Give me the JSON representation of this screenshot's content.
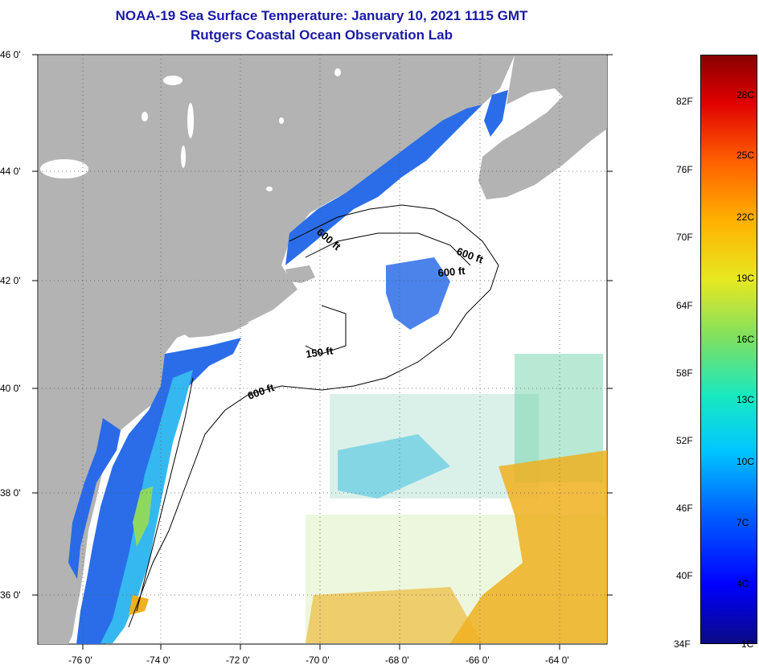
{
  "title": {
    "line1": "NOAA-19 Sea Surface Temperature:  January 10, 2021 1115 GMT",
    "line2": "Rutgers Coastal Ocean Observation Lab"
  },
  "map": {
    "lat_labels": [
      "46 0'",
      "44 0'",
      "42 0'",
      "40 0'",
      "38 0'",
      "36 0'"
    ],
    "lon_labels": [
      "-76 0'",
      "-74 0'",
      "-72 0'",
      "-70 0'",
      "-68 0'",
      "-66 0'",
      "-64 0'"
    ],
    "contour_labels": [
      "600 ft",
      "600 ft",
      "600 ft",
      "150 ft",
      "600 ft"
    ],
    "colors": {
      "land": "#b3b3b3",
      "ocean_no_data": "#ffffff",
      "cold": "#1e50e8",
      "warm": "#f0b020"
    }
  },
  "colorbar": {
    "fahrenheit_labels": [
      "82F",
      "76F",
      "70F",
      "64F",
      "58F",
      "52F",
      "46F",
      "40F",
      "34F"
    ],
    "celsius_labels": [
      "28C",
      "25C",
      "22C",
      "19C",
      "16C",
      "13C",
      "10C",
      "7C",
      "4C",
      "1C"
    ]
  }
}
